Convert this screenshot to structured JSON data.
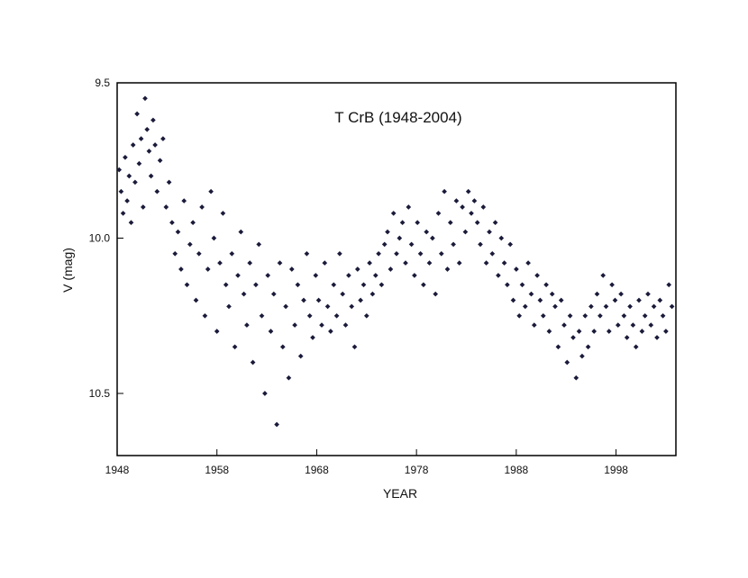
{
  "chart_data": {
    "type": "scatter",
    "title": "T CrB (1948-2004)",
    "xlabel": "YEAR",
    "ylabel": "V (mag)",
    "xlim": [
      1948,
      2004
    ],
    "ylim": [
      9.5,
      10.7
    ],
    "y_inverted": true,
    "x_ticks": [
      1948,
      1958,
      1968,
      1978,
      1988,
      1998
    ],
    "x_tick_labels": [
      "1948",
      "1958",
      "1968",
      "1978",
      "1988",
      "1998"
    ],
    "y_ticks": [
      9.5,
      10.0,
      10.5
    ],
    "y_tick_labels": [
      "9.5",
      "10.0",
      "10.5"
    ],
    "grid": false,
    "marker_color": "#1a1a3a",
    "series": [
      {
        "points": [
          [
            1948.2,
            9.78
          ],
          [
            1948.4,
            9.85
          ],
          [
            1948.6,
            9.92
          ],
          [
            1948.8,
            9.74
          ],
          [
            1949.0,
            9.88
          ],
          [
            1949.2,
            9.8
          ],
          [
            1949.4,
            9.95
          ],
          [
            1949.6,
            9.7
          ],
          [
            1949.8,
            9.82
          ],
          [
            1950.0,
            9.6
          ],
          [
            1950.2,
            9.76
          ],
          [
            1950.4,
            9.68
          ],
          [
            1950.6,
            9.9
          ],
          [
            1950.8,
            9.55
          ],
          [
            1951.0,
            9.65
          ],
          [
            1951.2,
            9.72
          ],
          [
            1951.4,
            9.8
          ],
          [
            1951.6,
            9.62
          ],
          [
            1951.8,
            9.7
          ],
          [
            1952.0,
            9.85
          ],
          [
            1952.3,
            9.75
          ],
          [
            1952.6,
            9.68
          ],
          [
            1952.9,
            9.9
          ],
          [
            1953.2,
            9.82
          ],
          [
            1953.5,
            9.95
          ],
          [
            1953.8,
            10.05
          ],
          [
            1954.1,
            9.98
          ],
          [
            1954.4,
            10.1
          ],
          [
            1954.7,
            9.88
          ],
          [
            1955.0,
            10.15
          ],
          [
            1955.3,
            10.02
          ],
          [
            1955.6,
            9.95
          ],
          [
            1955.9,
            10.2
          ],
          [
            1956.2,
            10.05
          ],
          [
            1956.5,
            9.9
          ],
          [
            1956.8,
            10.25
          ],
          [
            1957.1,
            10.1
          ],
          [
            1957.4,
            9.85
          ],
          [
            1957.7,
            10.0
          ],
          [
            1958.0,
            10.3
          ],
          [
            1958.3,
            10.08
          ],
          [
            1958.6,
            9.92
          ],
          [
            1958.9,
            10.15
          ],
          [
            1959.2,
            10.22
          ],
          [
            1959.5,
            10.05
          ],
          [
            1959.8,
            10.35
          ],
          [
            1960.1,
            10.12
          ],
          [
            1960.4,
            9.98
          ],
          [
            1960.7,
            10.18
          ],
          [
            1961.0,
            10.28
          ],
          [
            1961.3,
            10.08
          ],
          [
            1961.6,
            10.4
          ],
          [
            1961.9,
            10.15
          ],
          [
            1962.2,
            10.02
          ],
          [
            1962.5,
            10.25
          ],
          [
            1962.8,
            10.5
          ],
          [
            1963.1,
            10.12
          ],
          [
            1963.4,
            10.3
          ],
          [
            1963.7,
            10.18
          ],
          [
            1964.0,
            10.6
          ],
          [
            1964.3,
            10.08
          ],
          [
            1964.6,
            10.35
          ],
          [
            1964.9,
            10.22
          ],
          [
            1965.2,
            10.45
          ],
          [
            1965.5,
            10.1
          ],
          [
            1965.8,
            10.28
          ],
          [
            1966.1,
            10.15
          ],
          [
            1966.4,
            10.38
          ],
          [
            1966.7,
            10.2
          ],
          [
            1967.0,
            10.05
          ],
          [
            1967.3,
            10.25
          ],
          [
            1967.6,
            10.32
          ],
          [
            1967.9,
            10.12
          ],
          [
            1968.2,
            10.2
          ],
          [
            1968.5,
            10.28
          ],
          [
            1968.8,
            10.08
          ],
          [
            1969.1,
            10.22
          ],
          [
            1969.4,
            10.3
          ],
          [
            1969.7,
            10.15
          ],
          [
            1970.0,
            10.25
          ],
          [
            1970.3,
            10.05
          ],
          [
            1970.6,
            10.18
          ],
          [
            1970.9,
            10.28
          ],
          [
            1971.2,
            10.12
          ],
          [
            1971.5,
            10.22
          ],
          [
            1971.8,
            10.35
          ],
          [
            1972.1,
            10.1
          ],
          [
            1972.4,
            10.2
          ],
          [
            1972.7,
            10.15
          ],
          [
            1973.0,
            10.25
          ],
          [
            1973.3,
            10.08
          ],
          [
            1973.6,
            10.18
          ],
          [
            1973.9,
            10.12
          ],
          [
            1974.2,
            10.05
          ],
          [
            1974.5,
            10.15
          ],
          [
            1974.8,
            10.02
          ],
          [
            1975.1,
            9.98
          ],
          [
            1975.4,
            10.1
          ],
          [
            1975.7,
            9.92
          ],
          [
            1976.0,
            10.05
          ],
          [
            1976.3,
            10.0
          ],
          [
            1976.6,
            9.95
          ],
          [
            1976.9,
            10.08
          ],
          [
            1977.2,
            9.9
          ],
          [
            1977.5,
            10.02
          ],
          [
            1977.8,
            10.12
          ],
          [
            1978.1,
            9.95
          ],
          [
            1978.4,
            10.05
          ],
          [
            1978.7,
            10.15
          ],
          [
            1979.0,
            9.98
          ],
          [
            1979.3,
            10.08
          ],
          [
            1979.6,
            10.0
          ],
          [
            1979.9,
            10.18
          ],
          [
            1980.2,
            9.92
          ],
          [
            1980.5,
            10.05
          ],
          [
            1980.8,
            9.85
          ],
          [
            1981.1,
            10.1
          ],
          [
            1981.4,
            9.95
          ],
          [
            1981.7,
            10.02
          ],
          [
            1982.0,
            9.88
          ],
          [
            1982.3,
            10.08
          ],
          [
            1982.6,
            9.9
          ],
          [
            1982.9,
            9.98
          ],
          [
            1983.2,
            9.85
          ],
          [
            1983.5,
            9.92
          ],
          [
            1983.8,
            9.88
          ],
          [
            1984.1,
            9.95
          ],
          [
            1984.4,
            10.02
          ],
          [
            1984.7,
            9.9
          ],
          [
            1985.0,
            10.08
          ],
          [
            1985.3,
            9.98
          ],
          [
            1985.6,
            10.05
          ],
          [
            1985.9,
            9.95
          ],
          [
            1986.2,
            10.12
          ],
          [
            1986.5,
            10.0
          ],
          [
            1986.8,
            10.08
          ],
          [
            1987.1,
            10.15
          ],
          [
            1987.4,
            10.02
          ],
          [
            1987.7,
            10.2
          ],
          [
            1988.0,
            10.1
          ],
          [
            1988.3,
            10.25
          ],
          [
            1988.6,
            10.15
          ],
          [
            1988.9,
            10.22
          ],
          [
            1989.2,
            10.08
          ],
          [
            1989.5,
            10.18
          ],
          [
            1989.8,
            10.28
          ],
          [
            1990.1,
            10.12
          ],
          [
            1990.4,
            10.2
          ],
          [
            1990.7,
            10.25
          ],
          [
            1991.0,
            10.15
          ],
          [
            1991.3,
            10.3
          ],
          [
            1991.6,
            10.18
          ],
          [
            1991.9,
            10.22
          ],
          [
            1992.2,
            10.35
          ],
          [
            1992.5,
            10.2
          ],
          [
            1992.8,
            10.28
          ],
          [
            1993.1,
            10.4
          ],
          [
            1993.4,
            10.25
          ],
          [
            1993.7,
            10.32
          ],
          [
            1994.0,
            10.45
          ],
          [
            1994.3,
            10.3
          ],
          [
            1994.6,
            10.38
          ],
          [
            1994.9,
            10.25
          ],
          [
            1995.2,
            10.35
          ],
          [
            1995.5,
            10.22
          ],
          [
            1995.8,
            10.3
          ],
          [
            1996.1,
            10.18
          ],
          [
            1996.4,
            10.25
          ],
          [
            1996.7,
            10.12
          ],
          [
            1997.0,
            10.22
          ],
          [
            1997.3,
            10.3
          ],
          [
            1997.6,
            10.15
          ],
          [
            1997.9,
            10.2
          ],
          [
            1998.2,
            10.28
          ],
          [
            1998.5,
            10.18
          ],
          [
            1998.8,
            10.25
          ],
          [
            1999.1,
            10.32
          ],
          [
            1999.4,
            10.22
          ],
          [
            1999.7,
            10.28
          ],
          [
            2000.0,
            10.35
          ],
          [
            2000.3,
            10.2
          ],
          [
            2000.6,
            10.3
          ],
          [
            2000.9,
            10.25
          ],
          [
            2001.2,
            10.18
          ],
          [
            2001.5,
            10.28
          ],
          [
            2001.8,
            10.22
          ],
          [
            2002.1,
            10.32
          ],
          [
            2002.4,
            10.2
          ],
          [
            2002.7,
            10.25
          ],
          [
            2003.0,
            10.3
          ],
          [
            2003.3,
            10.15
          ],
          [
            2003.6,
            10.22
          ]
        ]
      }
    ]
  }
}
